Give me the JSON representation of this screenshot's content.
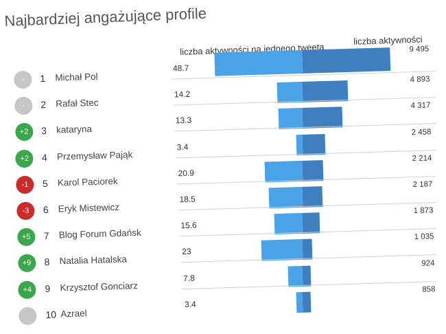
{
  "title": "Najbardziej angażujące profile",
  "column_headers": {
    "per_tweet": "liczba aktywności na jednego tweeta",
    "total": "liczba aktywności"
  },
  "chart_data": {
    "type": "bar",
    "categories": [
      "Michał Pol",
      "Rafał Stec",
      "kataryna",
      "Przemysław Pająk",
      "Karol Paciorek",
      "Eryk Mistewicz",
      "Blog Forum Gdańsk",
      "Natalia Hatalska",
      "Krzysztof Gonciarz",
      "Azrael"
    ],
    "series": [
      {
        "name": "liczba aktywności na jednego tweeta",
        "values": [
          48.7,
          14.2,
          13.3,
          3.4,
          20.9,
          18.5,
          15.6,
          23,
          7.8,
          3.4
        ]
      },
      {
        "name": "liczba aktywności",
        "values": [
          9495,
          4893,
          4317,
          2458,
          2214,
          2187,
          1873,
          1035,
          924,
          858
        ]
      }
    ]
  },
  "rows": [
    {
      "rank": "1",
      "change": "-",
      "trend": "same",
      "name": "Michał Pol",
      "ratio": "48.7",
      "total": "9 495"
    },
    {
      "rank": "2",
      "change": "-",
      "trend": "same",
      "name": "Rafał Stec",
      "ratio": "14.2",
      "total": "4 893"
    },
    {
      "rank": "3",
      "change": "+2",
      "trend": "up",
      "name": "kataryna",
      "ratio": "13.3",
      "total": "4 317"
    },
    {
      "rank": "4",
      "change": "+2",
      "trend": "up",
      "name": "Przemysław Pająk",
      "ratio": "3.4",
      "total": "2 458"
    },
    {
      "rank": "5",
      "change": "-1",
      "trend": "down",
      "name": "Karol Paciorek",
      "ratio": "20.9",
      "total": "2 214"
    },
    {
      "rank": "6",
      "change": "-3",
      "trend": "down",
      "name": "Eryk Mistewicz",
      "ratio": "18.5",
      "total": "2 187"
    },
    {
      "rank": "7",
      "change": "+5",
      "trend": "up",
      "name": "Blog Forum Gdańsk",
      "ratio": "15.6",
      "total": "1 873"
    },
    {
      "rank": "8",
      "change": "+9",
      "trend": "up",
      "name": "Natalia Hatalska",
      "ratio": "23",
      "total": "1 035"
    },
    {
      "rank": "9",
      "change": "+4",
      "trend": "up",
      "name": "Krzysztof Gonciarz",
      "ratio": "7.8",
      "total": "924"
    },
    {
      "rank": "10",
      "change": "",
      "trend": "same",
      "name": "Azrael",
      "ratio": "3.4",
      "total": "858"
    }
  ],
  "colors": {
    "bar_per_tweet": "#4aa3e6",
    "bar_total": "#3f7fbf",
    "badge_up": "#3aa84a",
    "badge_down": "#cc2b2b",
    "badge_same": "#c6c6c6"
  }
}
